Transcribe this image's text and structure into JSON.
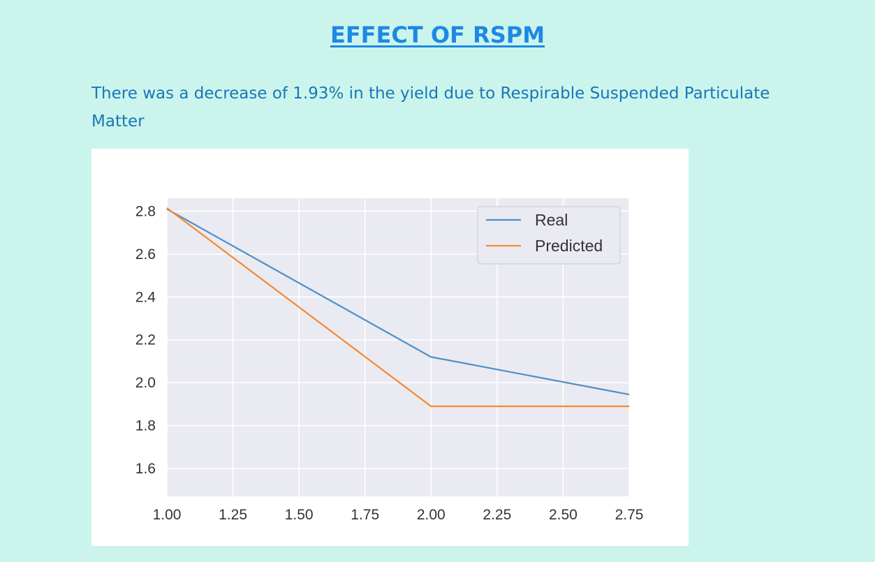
{
  "page": {
    "title": "EFFECT OF RSPM",
    "summary": "There was a decrease of 1.93% in the yield due to Respirable Suspended Particulate Matter"
  },
  "colors": {
    "background": "#cbf5ec",
    "plot_background": "#eaeaf2",
    "grid": "#ffffff",
    "real": "#4c8fc6",
    "predicted": "#f58a2e"
  },
  "chart_data": {
    "type": "line",
    "title": "",
    "xlabel": "",
    "ylabel": "",
    "x": [
      1.0,
      2.0,
      2.75
    ],
    "series": [
      {
        "name": "Real",
        "values": [
          2.81,
          2.12,
          1.945
        ]
      },
      {
        "name": "Predicted",
        "values": [
          2.815,
          1.89,
          1.89
        ]
      }
    ],
    "xlim": [
      1.0,
      2.75
    ],
    "ylim": [
      1.47,
      2.86
    ],
    "xticks": [
      "1.00",
      "1.25",
      "1.50",
      "1.75",
      "2.00",
      "2.25",
      "2.50",
      "2.75"
    ],
    "yticks": [
      "1.6",
      "1.8",
      "2.0",
      "2.2",
      "2.4",
      "2.6",
      "2.8"
    ],
    "grid": true,
    "legend": "top-right"
  }
}
